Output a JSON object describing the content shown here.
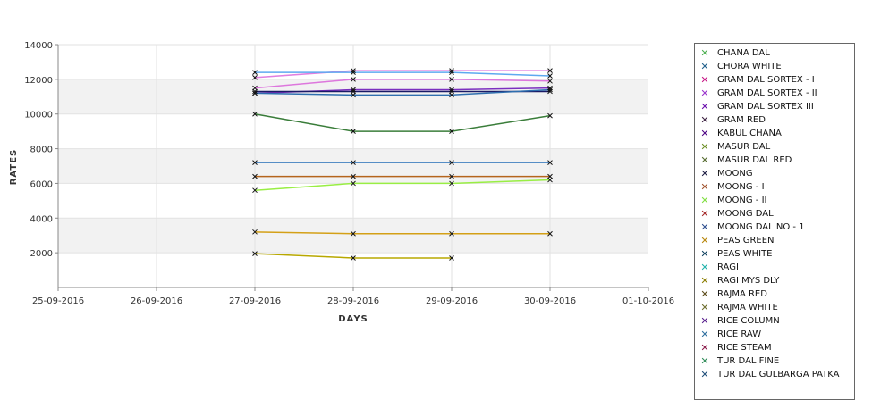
{
  "chart_data": {
    "type": "line",
    "xlabel": "DAYS",
    "ylabel": "RATES",
    "x_ticks": [
      "25-09-2016",
      "26-09-2016",
      "27-09-2016",
      "28-09-2016",
      "29-09-2016",
      "30-09-2016",
      "01-10-2016"
    ],
    "ylim": [
      0,
      14000
    ],
    "y_ticks": [
      2000,
      4000,
      6000,
      8000,
      10000,
      12000,
      14000
    ],
    "grid": true,
    "legend_position": "right",
    "series": [
      {
        "name": "CHANA DAL",
        "color": "#4caf50",
        "x": [
          "27-09-2016",
          "28-09-2016",
          "29-09-2016",
          "30-09-2016"
        ],
        "values": [
          10000,
          9000,
          9000,
          9900
        ],
        "line_color": "#3a7d3a"
      },
      {
        "name": "CHORA WHITE",
        "color": "#1f5f8b",
        "x": [
          "27-09-2016",
          "28-09-2016",
          "29-09-2016",
          "30-09-2016"
        ],
        "values": [
          7200,
          7200,
          7200,
          7200
        ],
        "line_color": "#3f7fbf"
      },
      {
        "name": "GRAM DAL SORTEX  - I",
        "color": "#c71585",
        "x": [
          "27-09-2016",
          "28-09-2016",
          "29-09-2016",
          "30-09-2016"
        ],
        "values": [
          11500,
          12000,
          12000,
          11900
        ],
        "line_color": "#dd77dd"
      },
      {
        "name": "GRAM DAL SORTEX - II",
        "color": "#9932cc",
        "x": [
          "27-09-2016",
          "28-09-2016",
          "29-09-2016",
          "30-09-2016"
        ],
        "values": [
          12100,
          12500,
          12500,
          12500
        ],
        "line_color": "#e07fe0"
      },
      {
        "name": "GRAM DAL SORTEX III",
        "color": "#6a0dad",
        "x": [
          "27-09-2016",
          "28-09-2016",
          "29-09-2016",
          "30-09-2016"
        ],
        "values": [
          11200,
          11400,
          11400,
          11500
        ],
        "line_color": "#7b2fbf"
      },
      {
        "name": "GRAM RED",
        "color": "#3b2040",
        "x": [],
        "values": []
      },
      {
        "name": "KABUL CHANA",
        "color": "#4b0082",
        "x": [],
        "values": []
      },
      {
        "name": "MASUR DAL",
        "color": "#6b8e23",
        "x": [],
        "values": []
      },
      {
        "name": "MASUR DAL RED",
        "color": "#556b2f",
        "x": [],
        "values": []
      },
      {
        "name": "MOONG",
        "color": "#1a1a40",
        "x": [
          "27-09-2016",
          "28-09-2016",
          "29-09-2016",
          "30-09-2016"
        ],
        "values": [
          11300,
          11300,
          11300,
          11300
        ],
        "line_color": "#1a1a66"
      },
      {
        "name": "MOONG - I",
        "color": "#a0522d",
        "x": [
          "27-09-2016",
          "28-09-2016",
          "29-09-2016",
          "30-09-2016"
        ],
        "values": [
          6400,
          6400,
          6400,
          6400
        ],
        "line_color": "#b5651d"
      },
      {
        "name": "MOONG - II",
        "color": "#7fdf3f",
        "x": [
          "27-09-2016",
          "28-09-2016",
          "29-09-2016",
          "30-09-2016"
        ],
        "values": [
          5600,
          6000,
          6000,
          6200
        ],
        "line_color": "#99ee44"
      },
      {
        "name": "MOONG DAL",
        "color": "#a52a2a",
        "x": [],
        "values": []
      },
      {
        "name": "MOONG DAL NO - 1",
        "color": "#2f4f8f",
        "x": [
          "27-09-2016",
          "28-09-2016",
          "29-09-2016",
          "30-09-2016"
        ],
        "values": [
          11200,
          11100,
          11100,
          11400
        ],
        "line_color": "#2f6faf"
      },
      {
        "name": "PEAS GREEN",
        "color": "#b8860b",
        "x": [
          "27-09-2016",
          "28-09-2016",
          "29-09-2016",
          "30-09-2016"
        ],
        "values": [
          3200,
          3100,
          3100,
          3100
        ],
        "line_color": "#d4a017"
      },
      {
        "name": "PEAS WHITE",
        "color": "#0b3d5c",
        "x": [],
        "values": []
      },
      {
        "name": "RAGI",
        "color": "#20b2aa",
        "x": [],
        "values": []
      },
      {
        "name": "RAGI MYS DLY",
        "color": "#8b7d00",
        "x": [
          "27-09-2016",
          "28-09-2016",
          "29-09-2016"
        ],
        "values": [
          1950,
          1700,
          1700
        ],
        "line_color": "#b8a800"
      },
      {
        "name": "RAJMA RED",
        "color": "#5c4b1a",
        "x": [],
        "values": []
      },
      {
        "name": "RAJMA WHITE",
        "color": "#6e6e2e",
        "x": [],
        "values": []
      },
      {
        "name": "RICE COLUMN",
        "color": "#551a8b",
        "x": [],
        "values": []
      },
      {
        "name": "RICE RAW",
        "color": "#2e6e9e",
        "x": [
          "27-09-2016",
          "28-09-2016",
          "29-09-2016",
          "30-09-2016"
        ],
        "values": [
          12400,
          12400,
          12400,
          12200
        ],
        "line_color": "#5ea9f0"
      },
      {
        "name": "RICE STEAM",
        "color": "#8b1a4a",
        "x": [],
        "values": []
      },
      {
        "name": "TUR DAL FINE",
        "color": "#2e8b57",
        "x": [],
        "values": []
      },
      {
        "name": "TUR DAL GULBARGA PATKA",
        "color": "#1f4e79",
        "x": [],
        "values": []
      }
    ]
  }
}
